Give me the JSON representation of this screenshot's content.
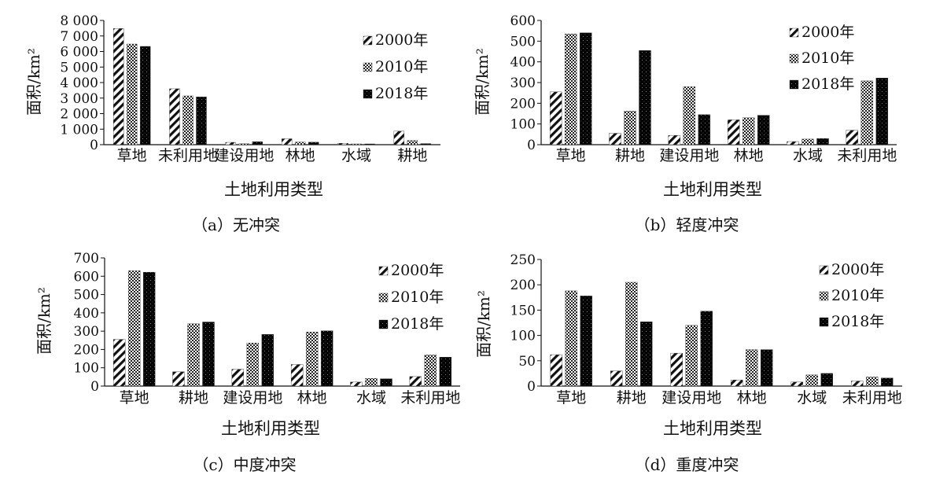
{
  "chart_data": [
    {
      "type": "bar",
      "ylabel": "面积/km²",
      "xlabel": "土地利用类型",
      "caption": "（a）无冲突",
      "categories": [
        "草地",
        "未利用地",
        "建设用地",
        "林地",
        "水域",
        "耕地"
      ],
      "ylim": [
        0,
        8000
      ],
      "yticks": [
        0,
        1000,
        2000,
        3000,
        4000,
        5000,
        6000,
        7000,
        8000
      ],
      "ytick_labels": [
        "0",
        "1 000",
        "2 000",
        "3 000",
        "4 000",
        "5 000",
        "6 000",
        "7 000",
        "8 000"
      ],
      "series": [
        {
          "name": "2000年",
          "pattern": "diag",
          "values": [
            7480,
            3600,
            150,
            380,
            90,
            870
          ]
        },
        {
          "name": "2010年",
          "pattern": "check",
          "values": [
            6480,
            3140,
            60,
            170,
            50,
            270
          ]
        },
        {
          "name": "2018年",
          "pattern": "dark",
          "values": [
            6330,
            3080,
            190,
            160,
            50,
            70
          ]
        }
      ],
      "legend_position": "top-right"
    },
    {
      "type": "bar",
      "ylabel": "面积/km²",
      "xlabel": "土地利用类型",
      "caption": "（b）轻度冲突",
      "categories": [
        "草地",
        "耕地",
        "建设用地",
        "林地",
        "水域",
        "未利用地"
      ],
      "ylim": [
        0,
        600
      ],
      "yticks": [
        0,
        100,
        200,
        300,
        400,
        500,
        600
      ],
      "ytick_labels": [
        "0",
        "100",
        "200",
        "300",
        "400",
        "500",
        "600"
      ],
      "series": [
        {
          "name": "2000年",
          "pattern": "diag",
          "values": [
            255,
            55,
            45,
            120,
            15,
            70
          ]
        },
        {
          "name": "2010年",
          "pattern": "check",
          "values": [
            535,
            162,
            280,
            130,
            27,
            308
          ]
        },
        {
          "name": "2018年",
          "pattern": "dark",
          "values": [
            540,
            455,
            145,
            142,
            30,
            322
          ]
        }
      ],
      "legend_position": "top-right"
    },
    {
      "type": "bar",
      "ylabel": "面积/km²",
      "xlabel": "土地利用类型",
      "caption": "（c）中度冲突",
      "categories": [
        "草地",
        "耕地",
        "建设用地",
        "林地",
        "水域",
        "未利用地"
      ],
      "ylim": [
        0,
        700
      ],
      "yticks": [
        0,
        100,
        200,
        300,
        400,
        500,
        600,
        700
      ],
      "ytick_labels": [
        "0",
        "100",
        "200",
        "300",
        "400",
        "500",
        "600",
        "700"
      ],
      "series": [
        {
          "name": "2000年",
          "pattern": "diag",
          "values": [
            255,
            78,
            92,
            118,
            22,
            52
          ]
        },
        {
          "name": "2010年",
          "pattern": "check",
          "values": [
            630,
            340,
            235,
            295,
            42,
            170
          ]
        },
        {
          "name": "2018年",
          "pattern": "dark",
          "values": [
            622,
            350,
            282,
            302,
            40,
            158
          ]
        }
      ],
      "legend_position": "top-right"
    },
    {
      "type": "bar",
      "ylabel": "面积/km²",
      "xlabel": "土地利用类型",
      "caption": "（d）重度冲突",
      "categories": [
        "草地",
        "耕地",
        "建设用地",
        "林地",
        "水域",
        "未利用地"
      ],
      "ylim": [
        0,
        250
      ],
      "yticks": [
        0,
        50,
        100,
        150,
        200,
        250
      ],
      "ytick_labels": [
        "0",
        "50",
        "100",
        "150",
        "200",
        "250"
      ],
      "series": [
        {
          "name": "2000年",
          "pattern": "diag",
          "values": [
            62,
            30,
            65,
            12,
            8,
            10
          ]
        },
        {
          "name": "2010年",
          "pattern": "check",
          "values": [
            188,
            205,
            120,
            72,
            22,
            18
          ]
        },
        {
          "name": "2018年",
          "pattern": "dark",
          "values": [
            178,
            127,
            148,
            72,
            25,
            16
          ]
        }
      ],
      "legend_position": "top-right"
    }
  ]
}
